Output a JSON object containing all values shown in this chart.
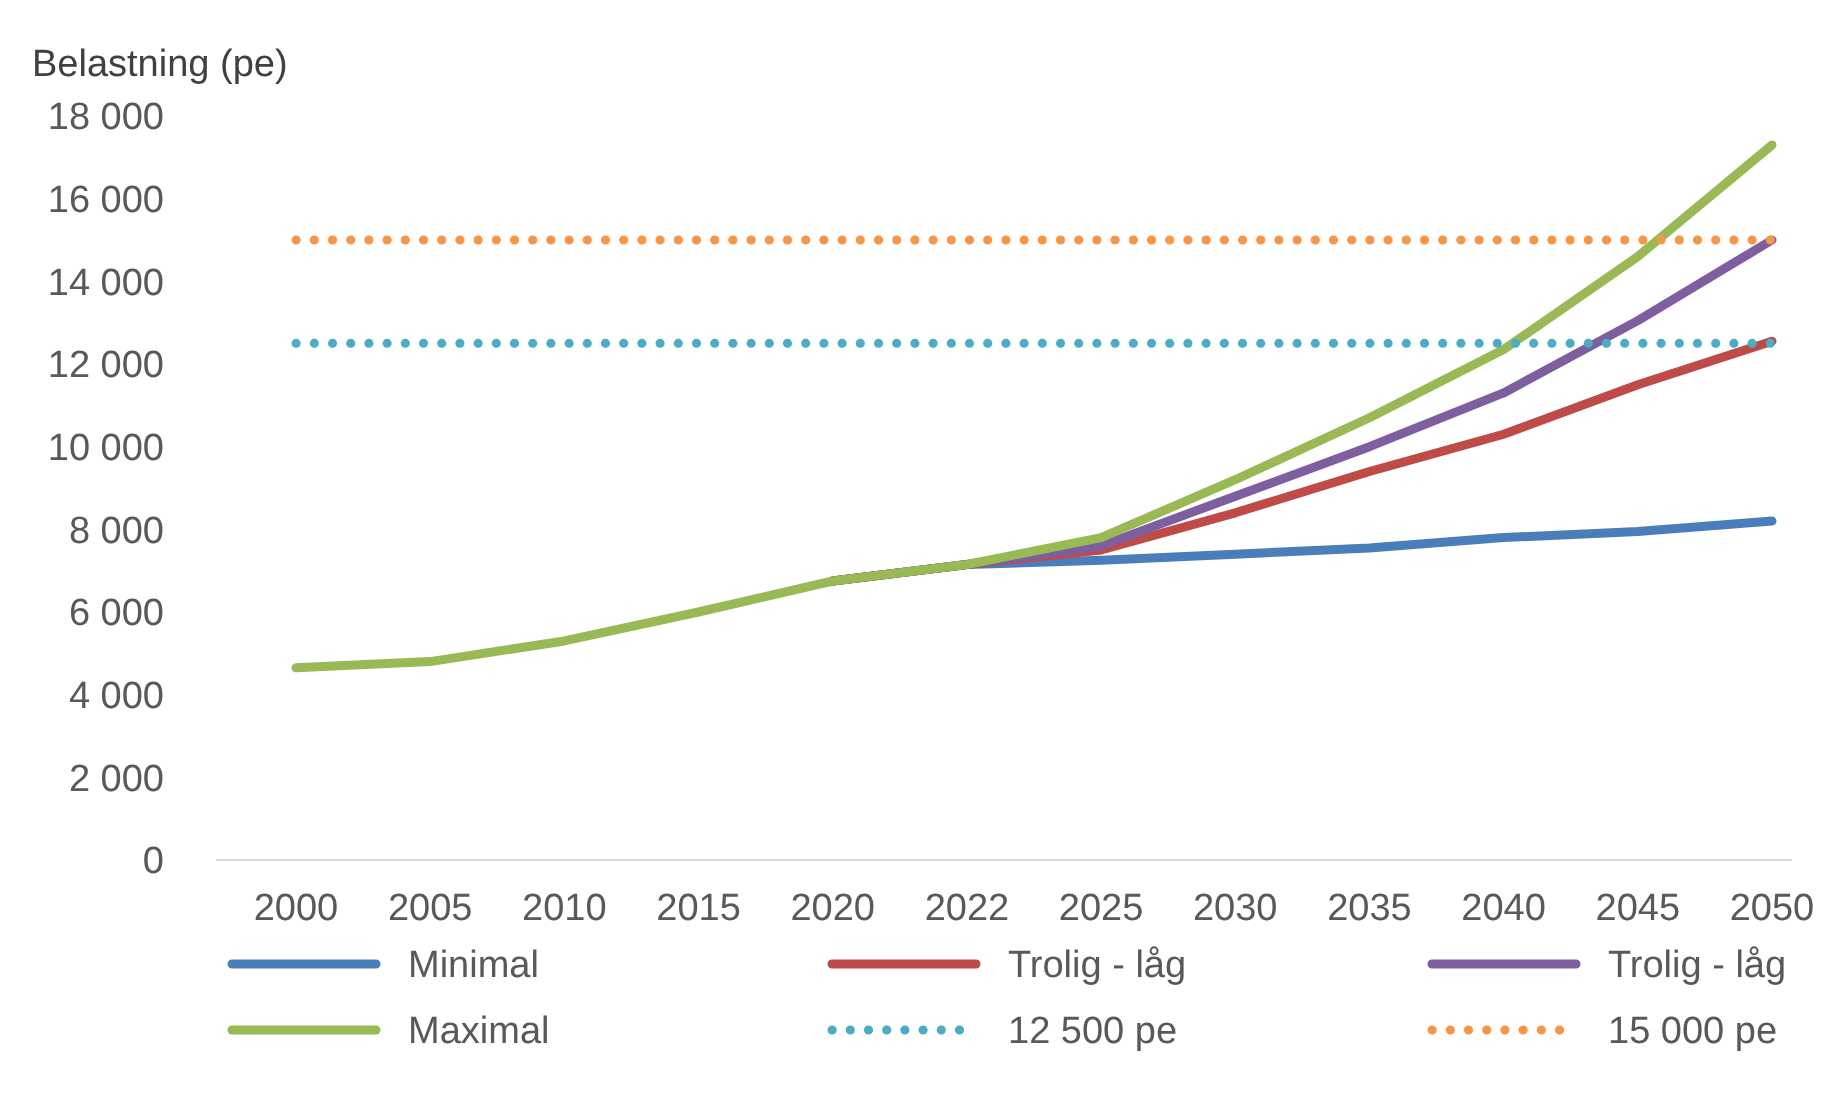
{
  "chart_data": {
    "type": "line",
    "ylabel": "Belastning (pe)",
    "categories": [
      "2000",
      "2005",
      "2010",
      "2015",
      "2020",
      "2022",
      "2025",
      "2030",
      "2035",
      "2040",
      "2045",
      "2050"
    ],
    "series": [
      {
        "name": "Minimal",
        "color": "#4a7ebb",
        "values": [
          null,
          null,
          null,
          null,
          6750,
          7150,
          7250,
          7400,
          7550,
          7800,
          7950,
          8200
        ]
      },
      {
        "name": "Trolig - låg",
        "color": "#be4b48",
        "values": [
          null,
          null,
          null,
          null,
          6750,
          7150,
          7500,
          8400,
          9400,
          10300,
          11500,
          12550
        ]
      },
      {
        "name": "Trolig - låg",
        "color": "#7d5fa0",
        "values": [
          null,
          null,
          null,
          null,
          6750,
          7150,
          7600,
          8800,
          10000,
          11300,
          13050,
          15000
        ]
      },
      {
        "name": "Maximal",
        "color": "#98b954",
        "values": [
          4650,
          4800,
          5300,
          6000,
          6750,
          7150,
          7800,
          9200,
          10700,
          12350,
          14600,
          17300
        ]
      },
      {
        "name": "12 500 pe",
        "color": "#4bacc6",
        "line_style": "dotted",
        "values": [
          12500,
          12500,
          12500,
          12500,
          12500,
          12500,
          12500,
          12500,
          12500,
          12500,
          12500,
          12500
        ]
      },
      {
        "name": "15 000 pe",
        "color": "#f79646",
        "line_style": "dotted",
        "values": [
          15000,
          15000,
          15000,
          15000,
          15000,
          15000,
          15000,
          15000,
          15000,
          15000,
          15000,
          15000
        ]
      }
    ],
    "ylim": [
      0,
      18000
    ],
    "yticks": [
      {
        "value": 0,
        "label": "0"
      },
      {
        "value": 2000,
        "label": "2 000"
      },
      {
        "value": 4000,
        "label": "4 000"
      },
      {
        "value": 6000,
        "label": "6 000"
      },
      {
        "value": 8000,
        "label": "8 000"
      },
      {
        "value": 10000,
        "label": "10 000"
      },
      {
        "value": 12000,
        "label": "12 000"
      },
      {
        "value": 14000,
        "label": "14 000"
      },
      {
        "value": 16000,
        "label": "16 000"
      },
      {
        "value": 18000,
        "label": "18 000"
      }
    ],
    "grid": false,
    "legend": "bottom",
    "marker": "none",
    "line_style": "solid"
  }
}
